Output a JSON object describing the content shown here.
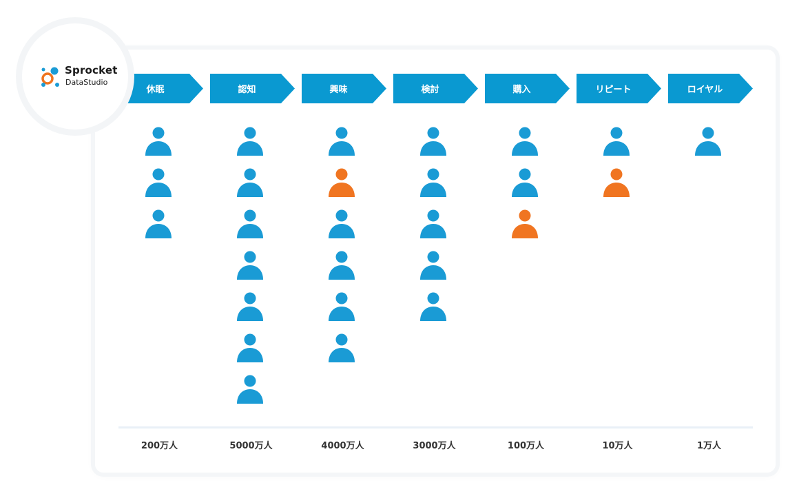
{
  "brand": {
    "name": "Sprocket",
    "subname": "DataStudio"
  },
  "colors": {
    "stage_fill": "#0a99d1",
    "person_blue": "#1a9bd5",
    "person_orange": "#f07521",
    "logo_blue": "#1a9bd5",
    "logo_orange": "#f07521"
  },
  "icons": {
    "person": "person-icon",
    "logo": "sprocket-logo-mark"
  },
  "stages": [
    {
      "label": "休眠",
      "count_label": "200万人",
      "people": [
        "blue",
        "blue",
        "blue"
      ]
    },
    {
      "label": "認知",
      "count_label": "5000万人",
      "people": [
        "blue",
        "blue",
        "blue",
        "blue",
        "blue",
        "blue",
        "blue"
      ]
    },
    {
      "label": "興味",
      "count_label": "4000万人",
      "people": [
        "blue",
        "orange",
        "blue",
        "blue",
        "blue",
        "blue"
      ]
    },
    {
      "label": "検討",
      "count_label": "3000万人",
      "people": [
        "blue",
        "blue",
        "blue",
        "blue",
        "blue"
      ]
    },
    {
      "label": "購入",
      "count_label": "100万人",
      "people": [
        "blue",
        "blue",
        "orange"
      ]
    },
    {
      "label": "リピート",
      "count_label": "10万人",
      "people": [
        "blue",
        "orange"
      ]
    },
    {
      "label": "ロイヤル",
      "count_label": "1万人",
      "people": [
        "blue"
      ]
    }
  ]
}
